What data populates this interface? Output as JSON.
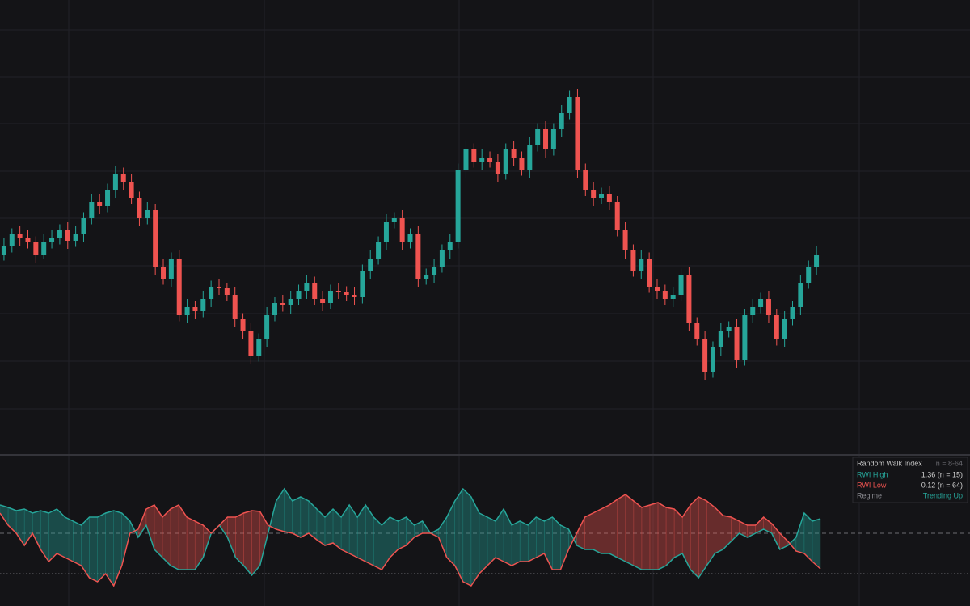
{
  "chart_data": [
    {
      "type": "candlestick",
      "up_color": "#26a69a",
      "down_color": "#ef5350",
      "ylim": [
        12,
        124
      ],
      "open": [
        61,
        63,
        66,
        65,
        64,
        61,
        64,
        65,
        67,
        64.4,
        66,
        70,
        74,
        73,
        77,
        81,
        79,
        75,
        70,
        72,
        58,
        55,
        60,
        46,
        48,
        47,
        50,
        53,
        52.6,
        51,
        45,
        42,
        36,
        40,
        46,
        49,
        48.4,
        50,
        52,
        54,
        50,
        49,
        52,
        51.6,
        51,
        50.4,
        57,
        60,
        64,
        69,
        70,
        64,
        66,
        55,
        56,
        58,
        62,
        64,
        82,
        87,
        84,
        85,
        84,
        81,
        87,
        85,
        82,
        88,
        92,
        87,
        92,
        96,
        100,
        82,
        77,
        75,
        76,
        74,
        67,
        62,
        57,
        60,
        53,
        52,
        50,
        51,
        56,
        44,
        40,
        32,
        38,
        42,
        43,
        35,
        46,
        48,
        50,
        46,
        40,
        45,
        48,
        54,
        58
      ],
      "high": [
        65,
        67.5,
        68,
        67,
        65.5,
        66,
        67,
        68.5,
        69,
        68,
        71.5,
        76,
        76,
        78.5,
        83,
        82.5,
        81,
        76.5,
        74,
        73.5,
        60,
        61.5,
        62,
        50,
        49.5,
        52,
        54.5,
        55,
        54,
        53,
        46.5,
        44,
        41.5,
        48,
        50.5,
        51,
        52,
        53.5,
        56,
        55.5,
        52,
        53.5,
        54,
        53.1,
        53,
        58.5,
        62,
        65.5,
        71,
        71.5,
        72,
        67.5,
        68,
        57.5,
        60,
        63.5,
        66,
        83.5,
        89,
        88.5,
        87,
        86.5,
        86,
        88.5,
        89,
        86.5,
        90,
        93.5,
        94,
        93.5,
        98,
        101.5,
        102,
        83.5,
        79,
        77.5,
        78,
        75.5,
        69,
        63.5,
        62,
        61.5,
        55,
        53.5,
        53,
        57.5,
        58,
        45.5,
        42,
        39.5,
        44,
        44.5,
        45,
        47.5,
        50,
        51.5,
        52,
        47.5,
        47,
        49.5,
        56,
        59.5,
        63
      ],
      "low": [
        59.5,
        61.5,
        63,
        62.5,
        59,
        60,
        62.5,
        63.5,
        62.4,
        62.9,
        64,
        68.5,
        71,
        71.5,
        75,
        77,
        73.5,
        68,
        68.5,
        56,
        53.5,
        53,
        44.5,
        44,
        45,
        45.5,
        48,
        51,
        49.5,
        43,
        40,
        34,
        34.5,
        38,
        44.5,
        46.9,
        46.4,
        48.5,
        50,
        48.5,
        47,
        47.5,
        50,
        49.5,
        48.4,
        48.9,
        55,
        58.5,
        62,
        67.5,
        62,
        62.5,
        53,
        53.5,
        54,
        56.5,
        60,
        62.5,
        80,
        82.5,
        82,
        82.5,
        79,
        79.5,
        83,
        80.5,
        80,
        86.5,
        85,
        85.5,
        90,
        94.5,
        80,
        75.5,
        73,
        73.5,
        72,
        65.5,
        60,
        55.5,
        55,
        51.5,
        50,
        48.5,
        48,
        49.5,
        42,
        38.5,
        30,
        30.5,
        36,
        40.5,
        33,
        33.5,
        44,
        46.5,
        44,
        38.5,
        38,
        43.5,
        46,
        52.5,
        56
      ],
      "close": [
        63,
        66,
        65,
        64,
        61,
        64,
        65,
        67,
        64.4,
        66,
        70,
        74,
        73,
        77,
        81,
        79,
        75,
        70,
        72,
        58,
        55,
        60,
        46,
        48,
        47,
        50,
        53,
        52.6,
        51,
        45,
        42,
        36,
        40,
        46,
        49,
        48.4,
        50,
        52,
        54,
        50,
        49,
        52,
        51.6,
        51,
        50.4,
        57,
        60,
        64,
        69,
        70,
        64,
        66,
        55,
        56,
        58,
        62,
        64,
        82,
        87,
        84,
        85,
        84,
        81,
        87,
        85,
        82,
        88,
        92,
        87,
        92,
        96,
        100,
        82,
        77,
        75,
        76,
        74,
        67,
        62,
        57,
        60,
        53,
        52,
        50,
        51,
        56,
        44,
        40,
        32,
        38,
        42,
        43,
        35,
        46,
        48,
        50,
        46,
        40,
        45,
        48,
        54,
        58,
        61
      ]
    },
    {
      "type": "line",
      "title": "Random Walk Index",
      "subtitle": "n = 8-64",
      "ylim": [
        -0.8,
        2.9
      ],
      "hlines": [
        {
          "value": 1,
          "style": "dashed"
        },
        {
          "value": 0,
          "style": "dotted"
        }
      ],
      "series": [
        {
          "name": "RWI High",
          "color": "#26a69a",
          "legend_value": "1.36 (n = 15)",
          "values": [
            1.7,
            1.64,
            1.56,
            1.6,
            1.5,
            1.56,
            1.5,
            1.6,
            1.4,
            1.3,
            1.2,
            1.4,
            1.4,
            1.5,
            1.56,
            1.5,
            1.3,
            0.9,
            1.2,
            0.6,
            0.4,
            0.2,
            0.1,
            0.1,
            0.1,
            0.4,
            1.0,
            1.2,
            0.9,
            0.4,
            0.2,
            -0.04,
            0.2,
            1.0,
            1.8,
            2.1,
            1.8,
            1.9,
            1.8,
            1.6,
            1.4,
            1.6,
            1.4,
            1.7,
            1.4,
            1.7,
            1.4,
            1.2,
            1.4,
            1.3,
            1.4,
            1.2,
            1.3,
            1.0,
            1.1,
            1.4,
            1.8,
            2.1,
            1.9,
            1.5,
            1.4,
            1.3,
            1.6,
            1.2,
            1.3,
            1.2,
            1.4,
            1.3,
            1.4,
            1.2,
            1.1,
            0.7,
            0.6,
            0.6,
            0.5,
            0.5,
            0.4,
            0.3,
            0.2,
            0.1,
            0.1,
            0.1,
            0.2,
            0.4,
            0.5,
            0.1,
            -0.1,
            0.2,
            0.5,
            0.6,
            0.8,
            1.0,
            0.9,
            1.0,
            1.1,
            1.0,
            0.6,
            0.7,
            0.9,
            1.5,
            1.3,
            1.36
          ]
        },
        {
          "name": "RWI Low",
          "color": "#ef5350",
          "legend_value": "0.12 (n = 64)",
          "values": [
            1.5,
            1.2,
            1.0,
            0.7,
            1.0,
            0.6,
            0.3,
            0.5,
            0.4,
            0.3,
            0.2,
            -0.1,
            -0.2,
            0,
            -0.3,
            0.2,
            1.0,
            1.1,
            1.6,
            1.7,
            1.4,
            1.6,
            1.7,
            1.4,
            1.3,
            1.2,
            1.0,
            1.2,
            1.4,
            1.4,
            1.5,
            1.56,
            1.54,
            1.2,
            1.1,
            1.04,
            1.0,
            0.9,
            1.0,
            0.84,
            0.7,
            0.76,
            0.6,
            0.5,
            0.4,
            0.3,
            0.2,
            0.1,
            0.4,
            0.6,
            0.7,
            0.9,
            1.0,
            1.0,
            0.9,
            0.4,
            0.2,
            -0.2,
            -0.3,
            0,
            0.2,
            0.4,
            0.3,
            0.2,
            0.3,
            0.3,
            0.4,
            0.5,
            0.1,
            0.1,
            0.6,
            1.0,
            1.4,
            1.5,
            1.6,
            1.7,
            1.84,
            1.96,
            1.8,
            1.64,
            1.7,
            1.76,
            1.64,
            1.6,
            1.4,
            1.7,
            1.9,
            1.8,
            1.64,
            1.44,
            1.4,
            1.3,
            1.2,
            1.2,
            1.4,
            1.24,
            1.0,
            0.8,
            0.56,
            0.5,
            0.3,
            0.12
          ]
        }
      ],
      "regime_label": "Regime",
      "regime": "Trending Up",
      "regime_color": "#26a69a"
    }
  ]
}
